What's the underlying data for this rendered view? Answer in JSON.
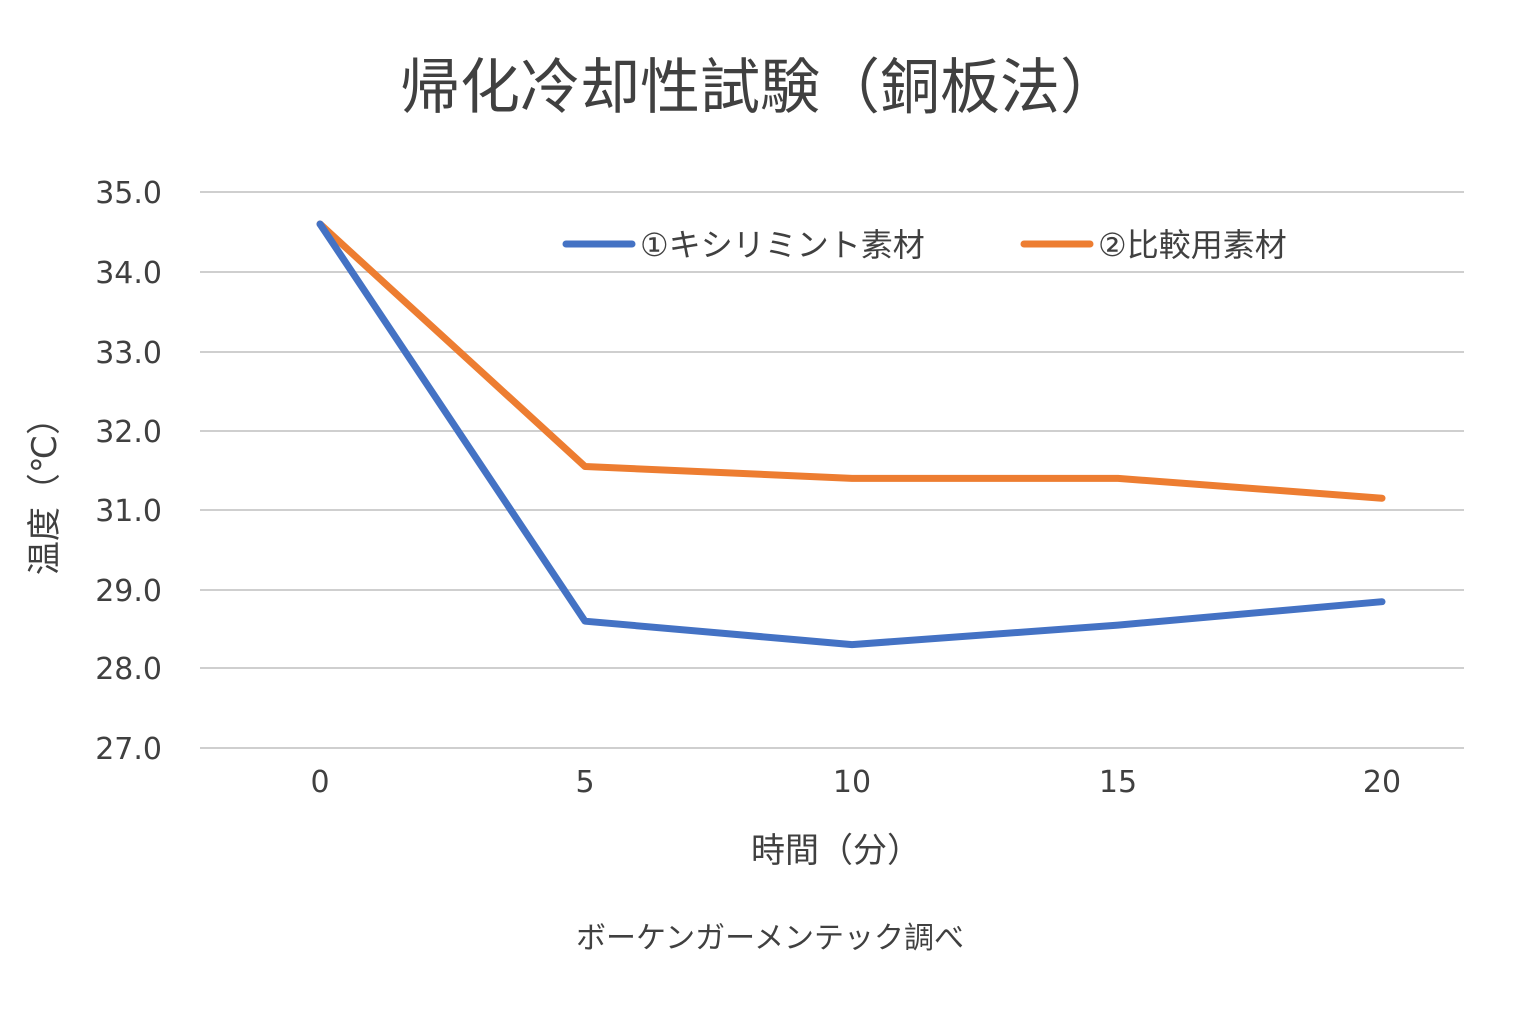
{
  "chart_data": {
    "type": "line",
    "title": "帰化冷却性試験（銅板法）",
    "xlabel": "時間（分）",
    "ylabel": "温度（℃）",
    "x": [
      0,
      5,
      10,
      15,
      20
    ],
    "x_tick_labels": [
      "0",
      "5",
      "10",
      "15",
      "20"
    ],
    "y_tick_labels": [
      "35.0",
      "34.0",
      "33.0",
      "32.0",
      "31.0",
      "29.0",
      "28.0",
      "27.0"
    ],
    "series": [
      {
        "name": "①キシリミント素材",
        "color": "#4472c4",
        "values": [
          34.6,
          28.6,
          28.3,
          28.55,
          28.85
        ]
      },
      {
        "name": "②比較用素材",
        "color": "#ed7d31",
        "values": [
          34.6,
          31.55,
          31.4,
          31.4,
          31.15
        ]
      }
    ],
    "legend_position": "top",
    "grid": true,
    "note": "ボーケンガーメンテック調べ"
  }
}
